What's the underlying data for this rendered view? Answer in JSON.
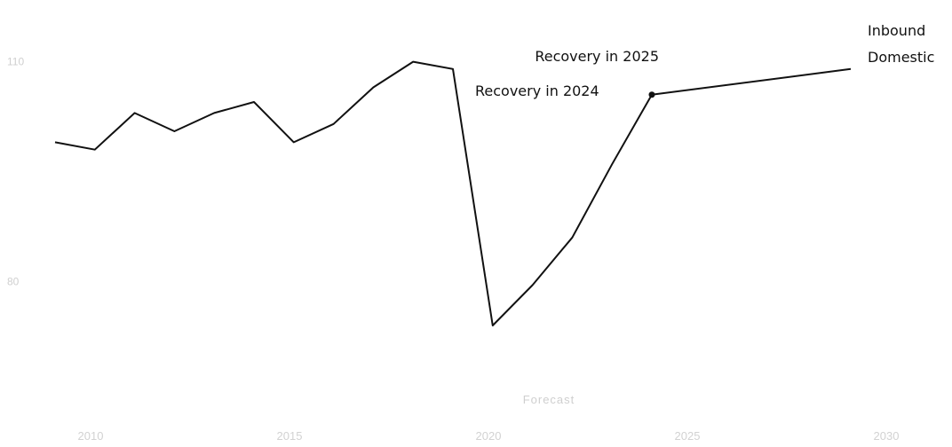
{
  "chart_data": {
    "type": "line",
    "title": "",
    "xlabel": "",
    "ylabel": "",
    "x": [
      2010,
      2011,
      2012,
      2013,
      2014,
      2015,
      2016,
      2017,
      2018,
      2019,
      2020,
      2021,
      2022,
      2023,
      2024,
      2025,
      2030
    ],
    "series": [
      {
        "values": [
          99,
          98,
          103,
          100.5,
          103,
          104.5,
          99,
          101.5,
          106.5,
          110,
          109,
          74,
          79.5,
          86,
          96,
          105.5,
          109
        ]
      }
    ],
    "x_ticks": [
      "2010",
      "2015",
      "2020",
      "2025",
      "2030"
    ],
    "y_ticks": [
      "110",
      "80"
    ],
    "ylim": [
      70,
      116
    ],
    "xlim": [
      2010,
      2030
    ],
    "grid": false,
    "annotations": {
      "recovery_2025": "Recovery in 2025",
      "recovery_2024": "Recovery in 2024",
      "forecast": "Forecast"
    },
    "end_labels": [
      "Inbound",
      "Domestic"
    ],
    "line_color": "#111111",
    "marker_color": "#111111"
  }
}
